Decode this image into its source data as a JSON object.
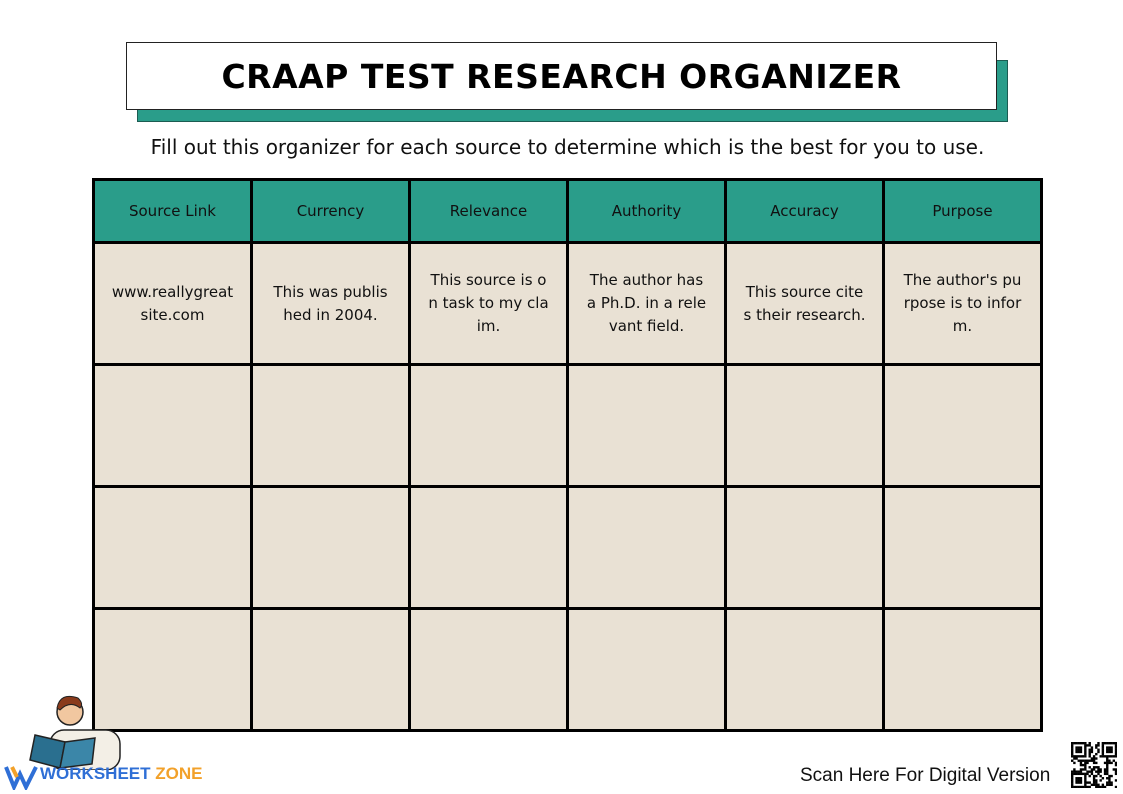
{
  "header": {
    "title": "CRAAP TEST RESEARCH ORGANIZER",
    "subtitle": "Fill out this organizer for each source to determine which is the best for you to use."
  },
  "table": {
    "headers": [
      "Source Link",
      "Currency",
      "Relevance",
      "Authority",
      "Accuracy",
      "Purpose"
    ],
    "rows": [
      [
        "www.reallygreatsite.com",
        "This was published in 2004.",
        "This source is on task to my claim.",
        "The author has a Ph.D. in a relevant field.",
        "This source cites their research.",
        "The author's purpose is to inform."
      ]
    ]
  },
  "footer": {
    "logo_part1": "WORKSHEET",
    "logo_part2": "ZONE",
    "scan_text": "Scan Here For Digital Version"
  }
}
